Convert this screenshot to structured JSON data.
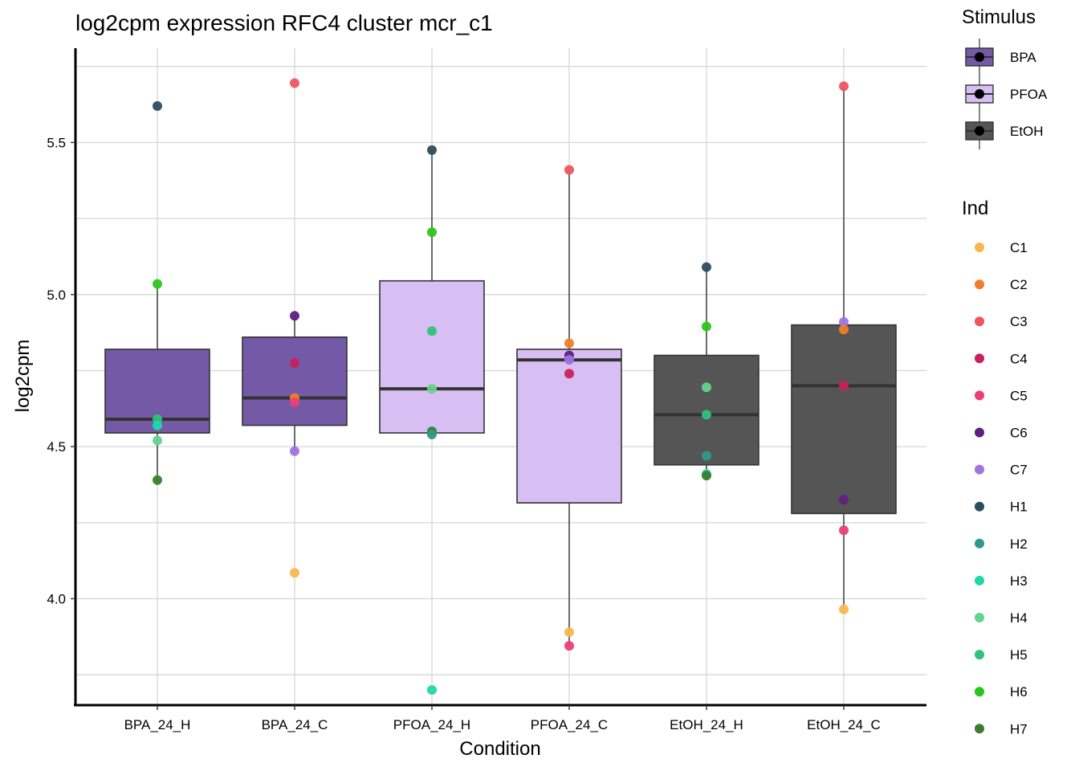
{
  "chart_data": {
    "type": "boxplot",
    "title": "log2cpm expression RFC4 cluster mcr_c1",
    "xlabel": "Condition",
    "ylabel": "log2cpm",
    "ylim": [
      3.65,
      5.81
    ],
    "yticks": [
      4.0,
      4.5,
      5.0,
      5.5
    ],
    "ytick_labels": [
      "4.0",
      "4.5",
      "5.0",
      "5.5"
    ],
    "grid": true,
    "categories": [
      "BPA_24_H",
      "BPA_24_C",
      "PFOA_24_H",
      "PFOA_24_C",
      "EtOH_24_H",
      "EtOH_24_C"
    ],
    "boxes": [
      {
        "category": "BPA_24_H",
        "stimulus": "BPA",
        "q1": 4.545,
        "median": 4.59,
        "q3": 4.82,
        "whisker_low": 4.39,
        "whisker_high": 5.035
      },
      {
        "category": "BPA_24_C",
        "stimulus": "BPA",
        "q1": 4.57,
        "median": 4.66,
        "q3": 4.86,
        "whisker_low": 4.485,
        "whisker_high": 4.93
      },
      {
        "category": "PFOA_24_H",
        "stimulus": "PFOA",
        "q1": 4.545,
        "median": 4.69,
        "q3": 5.045,
        "whisker_low": 4.54,
        "whisker_high": 5.475
      },
      {
        "category": "PFOA_24_C",
        "stimulus": "PFOA",
        "q1": 4.315,
        "median": 4.785,
        "q3": 4.82,
        "whisker_low": 3.845,
        "whisker_high": 5.41
      },
      {
        "category": "EtOH_24_H",
        "stimulus": "EtOH",
        "q1": 4.44,
        "median": 4.605,
        "q3": 4.8,
        "whisker_low": 4.405,
        "whisker_high": 5.09
      },
      {
        "category": "EtOH_24_C",
        "stimulus": "EtOH",
        "q1": 4.28,
        "median": 4.7,
        "q3": 4.9,
        "whisker_low": 3.965,
        "whisker_high": 5.685
      }
    ],
    "points": [
      {
        "category": "BPA_24_H",
        "ind": "H1",
        "y": 5.62
      },
      {
        "category": "BPA_24_H",
        "ind": "H6",
        "y": 5.035
      },
      {
        "category": "BPA_24_H",
        "ind": "H5",
        "y": 4.59
      },
      {
        "category": "BPA_24_H",
        "ind": "H3",
        "y": 4.57
      },
      {
        "category": "BPA_24_H",
        "ind": "H4",
        "y": 4.52
      },
      {
        "category": "BPA_24_H",
        "ind": "H7",
        "y": 4.39
      },
      {
        "category": "BPA_24_C",
        "ind": "C3",
        "y": 5.695
      },
      {
        "category": "BPA_24_C",
        "ind": "C6",
        "y": 4.93
      },
      {
        "category": "BPA_24_C",
        "ind": "C4",
        "y": 4.775
      },
      {
        "category": "BPA_24_C",
        "ind": "C2",
        "y": 4.66
      },
      {
        "category": "BPA_24_C",
        "ind": "C5",
        "y": 4.645
      },
      {
        "category": "BPA_24_C",
        "ind": "C7",
        "y": 4.485
      },
      {
        "category": "BPA_24_C",
        "ind": "C1",
        "y": 4.085
      },
      {
        "category": "PFOA_24_H",
        "ind": "H1",
        "y": 5.475
      },
      {
        "category": "PFOA_24_H",
        "ind": "H6",
        "y": 5.205
      },
      {
        "category": "PFOA_24_H",
        "ind": "H5",
        "y": 4.88
      },
      {
        "category": "PFOA_24_H",
        "ind": "H4",
        "y": 4.69
      },
      {
        "category": "PFOA_24_H",
        "ind": "H7",
        "y": 4.55
      },
      {
        "category": "PFOA_24_H",
        "ind": "H2",
        "y": 4.54
      },
      {
        "category": "PFOA_24_H",
        "ind": "H3",
        "y": 3.7
      },
      {
        "category": "PFOA_24_C",
        "ind": "C3",
        "y": 5.41
      },
      {
        "category": "PFOA_24_C",
        "ind": "C2",
        "y": 4.84
      },
      {
        "category": "PFOA_24_C",
        "ind": "C6",
        "y": 4.8
      },
      {
        "category": "PFOA_24_C",
        "ind": "C7",
        "y": 4.785
      },
      {
        "category": "PFOA_24_C",
        "ind": "C4",
        "y": 4.74
      },
      {
        "category": "PFOA_24_C",
        "ind": "C1",
        "y": 3.89
      },
      {
        "category": "PFOA_24_C",
        "ind": "C5",
        "y": 3.845
      },
      {
        "category": "EtOH_24_H",
        "ind": "H1",
        "y": 5.09
      },
      {
        "category": "EtOH_24_H",
        "ind": "H6",
        "y": 4.895
      },
      {
        "category": "EtOH_24_H",
        "ind": "H4",
        "y": 4.695
      },
      {
        "category": "EtOH_24_H",
        "ind": "H5",
        "y": 4.605
      },
      {
        "category": "EtOH_24_H",
        "ind": "H2",
        "y": 4.47
      },
      {
        "category": "EtOH_24_H",
        "ind": "H3",
        "y": 4.41
      },
      {
        "category": "EtOH_24_H",
        "ind": "H7",
        "y": 4.405
      },
      {
        "category": "EtOH_24_C",
        "ind": "C3",
        "y": 5.685
      },
      {
        "category": "EtOH_24_C",
        "ind": "C7",
        "y": 4.91
      },
      {
        "category": "EtOH_24_C",
        "ind": "C2",
        "y": 4.885
      },
      {
        "category": "EtOH_24_C",
        "ind": "C4",
        "y": 4.7
      },
      {
        "category": "EtOH_24_C",
        "ind": "C6",
        "y": 4.325
      },
      {
        "category": "EtOH_24_C",
        "ind": "C5",
        "y": 4.225
      },
      {
        "category": "EtOH_24_C",
        "ind": "C1",
        "y": 3.965
      }
    ],
    "stimulus_legend": {
      "title": "Stimulus",
      "items": [
        {
          "label": "BPA",
          "color": "#7459a6"
        },
        {
          "label": "PFOA",
          "color": "#d8bff3"
        },
        {
          "label": "EtOH",
          "color": "#555555"
        }
      ]
    },
    "ind_legend": {
      "title": "Ind",
      "items": [
        {
          "label": "C1",
          "color": "#f7b74e"
        },
        {
          "label": "C2",
          "color": "#f07e2b"
        },
        {
          "label": "C3",
          "color": "#ef5560"
        },
        {
          "label": "C4",
          "color": "#c8215f"
        },
        {
          "label": "C5",
          "color": "#ea3f79"
        },
        {
          "label": "C6",
          "color": "#5e2180"
        },
        {
          "label": "C7",
          "color": "#9d75de"
        },
        {
          "label": "H1",
          "color": "#2e4d5e"
        },
        {
          "label": "H2",
          "color": "#2f9a8a"
        },
        {
          "label": "H3",
          "color": "#1ed8a6"
        },
        {
          "label": "H4",
          "color": "#64d38f"
        },
        {
          "label": "H5",
          "color": "#2fc27a"
        },
        {
          "label": "H6",
          "color": "#2ec41d"
        },
        {
          "label": "H7",
          "color": "#3b7d2a"
        }
      ]
    },
    "colors": {
      "grid": "#d9d9d9",
      "axis": "#000000",
      "median": "#333333",
      "box_stroke": "#333333"
    }
  }
}
